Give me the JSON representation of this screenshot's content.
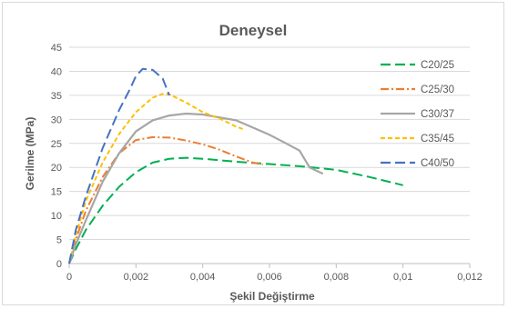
{
  "chart_data": {
    "type": "line",
    "title": "Deneysel",
    "xlabel": "Şekil Değiştirme",
    "ylabel": "Gerilme (MPa)",
    "xlim": [
      0,
      0.012
    ],
    "ylim": [
      0,
      45
    ],
    "x_ticks": [
      0,
      0.002,
      0.004,
      0.006,
      0.008,
      0.01,
      0.012
    ],
    "x_tick_labels": [
      "0",
      "0,002",
      "0,004",
      "0,006",
      "0,008",
      "0,01",
      "0,012"
    ],
    "y_ticks": [
      0,
      5,
      10,
      15,
      20,
      25,
      30,
      35,
      40,
      45
    ],
    "y_tick_labels": [
      "0",
      "5",
      "10",
      "15",
      "20",
      "25",
      "30",
      "35",
      "40",
      "45"
    ],
    "grid": "horizontal",
    "legend_position": "right",
    "series": [
      {
        "name": "C20/25",
        "color": "#00b050",
        "dash": "long-dash",
        "points": [
          [
            0,
            0
          ],
          [
            0.0002,
            3
          ],
          [
            0.0005,
            7
          ],
          [
            0.001,
            12
          ],
          [
            0.0015,
            16
          ],
          [
            0.002,
            19
          ],
          [
            0.0025,
            21
          ],
          [
            0.003,
            21.8
          ],
          [
            0.0035,
            22
          ],
          [
            0.004,
            21.8
          ],
          [
            0.005,
            21.2
          ],
          [
            0.006,
            20.7
          ],
          [
            0.007,
            20.2
          ],
          [
            0.008,
            19.5
          ],
          [
            0.009,
            18
          ],
          [
            0.01,
            16.3
          ]
        ]
      },
      {
        "name": "C25/30",
        "color": "#ed7d31",
        "dash": "dash-dot",
        "points": [
          [
            0,
            0
          ],
          [
            0.0002,
            5
          ],
          [
            0.0005,
            11
          ],
          [
            0.001,
            18
          ],
          [
            0.0015,
            23
          ],
          [
            0.002,
            25.7
          ],
          [
            0.0025,
            26.3
          ],
          [
            0.003,
            26.2
          ],
          [
            0.0035,
            25.6
          ],
          [
            0.004,
            24.8
          ],
          [
            0.0045,
            23.7
          ],
          [
            0.005,
            22.3
          ],
          [
            0.0055,
            21
          ],
          [
            0.0058,
            20.6
          ]
        ]
      },
      {
        "name": "C30/37",
        "color": "#a6a6a6",
        "dash": "solid",
        "points": [
          [
            0,
            0
          ],
          [
            0.0002,
            4
          ],
          [
            0.0005,
            9
          ],
          [
            0.001,
            17
          ],
          [
            0.0015,
            23
          ],
          [
            0.002,
            27.5
          ],
          [
            0.0025,
            29.8
          ],
          [
            0.003,
            30.8
          ],
          [
            0.0035,
            31.2
          ],
          [
            0.004,
            31
          ],
          [
            0.005,
            29.8
          ],
          [
            0.006,
            26.8
          ],
          [
            0.0065,
            25
          ],
          [
            0.0069,
            23.5
          ],
          [
            0.0072,
            20
          ],
          [
            0.0076,
            18.7
          ]
        ]
      },
      {
        "name": "C35/45",
        "color": "#ffc000",
        "dash": "short-dash",
        "points": [
          [
            0,
            0
          ],
          [
            0.0002,
            6
          ],
          [
            0.0005,
            13
          ],
          [
            0.001,
            21
          ],
          [
            0.0015,
            27
          ],
          [
            0.002,
            31.5
          ],
          [
            0.0025,
            34.5
          ],
          [
            0.0028,
            35.3
          ],
          [
            0.003,
            35.2
          ],
          [
            0.0035,
            33.5
          ],
          [
            0.004,
            31.5
          ],
          [
            0.0045,
            30.2
          ],
          [
            0.005,
            28.5
          ],
          [
            0.0052,
            28
          ]
        ]
      },
      {
        "name": "C40/50",
        "color": "#4472c4",
        "dash": "long-dash",
        "points": [
          [
            0,
            0
          ],
          [
            0.0002,
            7
          ],
          [
            0.0005,
            14
          ],
          [
            0.001,
            24
          ],
          [
            0.0015,
            32
          ],
          [
            0.0018,
            36
          ],
          [
            0.002,
            39
          ],
          [
            0.0022,
            40.5
          ],
          [
            0.0025,
            40.3
          ],
          [
            0.0028,
            38.5
          ],
          [
            0.003,
            35
          ]
        ]
      }
    ]
  }
}
